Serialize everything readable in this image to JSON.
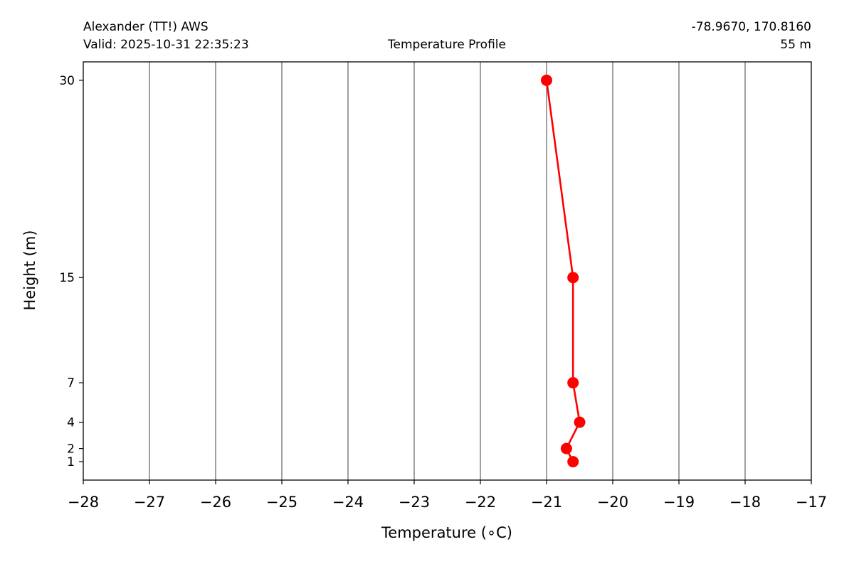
{
  "header": {
    "station": "Alexander (TT!) AWS",
    "valid": "Valid: 2025-10-31 22:35:23",
    "title": "Temperature Profile",
    "coords": "-78.9670, 170.8160",
    "elevation": "55 m"
  },
  "chart_data": {
    "type": "line",
    "xlabel": "Temperature (∘C)",
    "ylabel": "Height (m)",
    "xlim": [
      -28,
      -17
    ],
    "ylim": [
      -0.4,
      31.4
    ],
    "x_ticks": [
      -28,
      -27,
      -26,
      -25,
      -24,
      -23,
      -22,
      -21,
      -20,
      -19,
      -18,
      -17
    ],
    "y_ticks": [
      1,
      2,
      4,
      7,
      15,
      30
    ],
    "grid": "vertical",
    "series": [
      {
        "color": "#ff0000",
        "points": [
          {
            "temperature": -21.0,
            "height": 30
          },
          {
            "temperature": -20.6,
            "height": 15
          },
          {
            "temperature": -20.6,
            "height": 7
          },
          {
            "temperature": -20.5,
            "height": 4
          },
          {
            "temperature": -20.7,
            "height": 2
          },
          {
            "temperature": -20.6,
            "height": 1
          }
        ]
      }
    ],
    "colors": {
      "grid": "#808080",
      "axis": "#000000"
    }
  }
}
